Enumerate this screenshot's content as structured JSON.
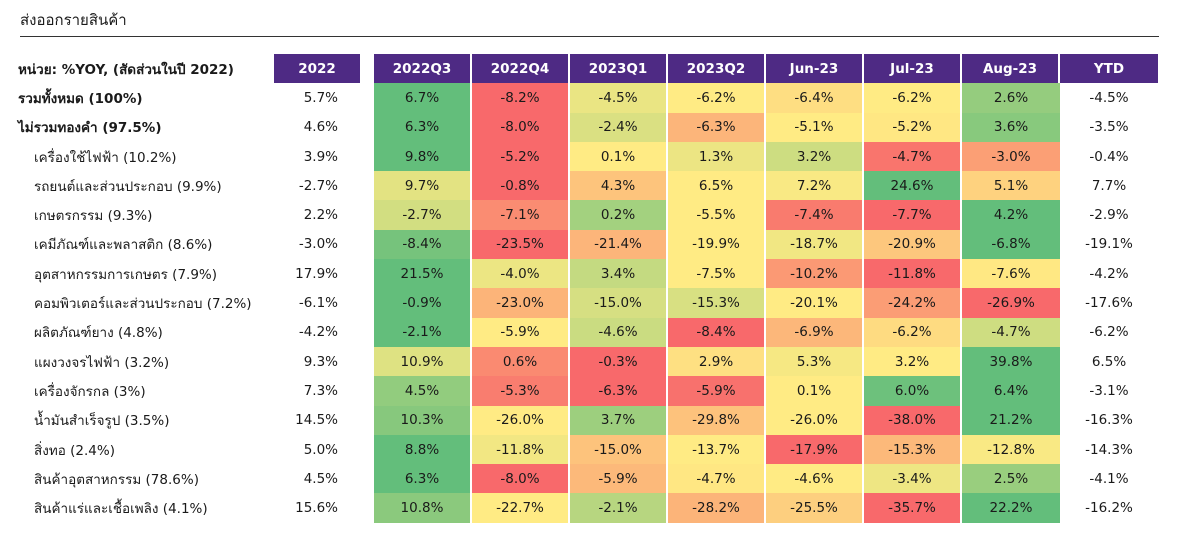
{
  "title": "ส่งออกรายสินค้า",
  "table": {
    "unit_label": "หน่วย: %YOY, (สัดส่วนในปี 2022)",
    "columns": [
      "2022",
      "2022Q3",
      "2022Q4",
      "2023Q1",
      "2023Q2",
      "Jun-23",
      "Jul-23",
      "Aug-23",
      "YTD"
    ],
    "rows": [
      {
        "label": "รวมทั้งหมด (100%)",
        "bold": true,
        "values": [
          "5.7%",
          "6.7%",
          "-8.2%",
          "-4.5%",
          "-6.2%",
          "-6.4%",
          "-6.2%",
          "2.6%",
          "-4.5%"
        ]
      },
      {
        "label": "ไม่รวมทองคำ (97.5%)",
        "bold": true,
        "values": [
          "4.6%",
          "6.3%",
          "-8.0%",
          "-2.4%",
          "-6.3%",
          "-5.1%",
          "-5.2%",
          "3.6%",
          "-3.5%"
        ]
      },
      {
        "label": "เครื่องใช้ไฟฟ้า (10.2%)",
        "bold": false,
        "values": [
          "3.9%",
          "9.8%",
          "-5.2%",
          "0.1%",
          "1.3%",
          "3.2%",
          "-4.7%",
          "-3.0%",
          "-0.4%"
        ]
      },
      {
        "label": "รถยนต์และส่วนประกอบ (9.9%)",
        "bold": false,
        "values": [
          "-2.7%",
          "9.7%",
          "-0.8%",
          "4.3%",
          "6.5%",
          "7.2%",
          "24.6%",
          "5.1%",
          "7.7%"
        ]
      },
      {
        "label": "เกษตรกรรม (9.3%)",
        "bold": false,
        "values": [
          "2.2%",
          "-2.7%",
          "-7.1%",
          "0.2%",
          "-5.5%",
          "-7.4%",
          "-7.7%",
          "4.2%",
          "-2.9%"
        ]
      },
      {
        "label": "เคมีภัณฑ์และพลาสติก (8.6%)",
        "bold": false,
        "values": [
          "-3.0%",
          "-8.4%",
          "-23.5%",
          "-21.4%",
          "-19.9%",
          "-18.7%",
          "-20.9%",
          "-6.8%",
          "-19.1%"
        ]
      },
      {
        "label": "อุตสาหกรรมการเกษตร (7.9%)",
        "bold": false,
        "values": [
          "17.9%",
          "21.5%",
          "-4.0%",
          "3.4%",
          "-7.5%",
          "-10.2%",
          "-11.8%",
          "-7.6%",
          "-4.2%"
        ]
      },
      {
        "label": "คอมพิวเตอร์และส่วนประกอบ (7.2%)",
        "bold": false,
        "values": [
          "-6.1%",
          "-0.9%",
          "-23.0%",
          "-15.0%",
          "-15.3%",
          "-20.1%",
          "-24.2%",
          "-26.9%",
          "-17.6%"
        ]
      },
      {
        "label": "ผลิตภัณฑ์ยาง (4.8%)",
        "bold": false,
        "values": [
          "-4.2%",
          "-2.1%",
          "-5.9%",
          "-4.6%",
          "-8.4%",
          "-6.9%",
          "-6.2%",
          "-4.7%",
          "-6.2%"
        ]
      },
      {
        "label": "แผงวงจรไฟฟ้า (3.2%)",
        "bold": false,
        "values": [
          "9.3%",
          "10.9%",
          "0.6%",
          "-0.3%",
          "2.9%",
          "5.3%",
          "3.2%",
          "39.8%",
          "6.5%"
        ]
      },
      {
        "label": "เครื่องจักรกล (3%)",
        "bold": false,
        "values": [
          "7.3%",
          "4.5%",
          "-5.3%",
          "-6.3%",
          "-5.9%",
          "0.1%",
          "6.0%",
          "6.4%",
          "-3.1%"
        ]
      },
      {
        "label": "น้ำมันสำเร็จรูป (3.5%)",
        "bold": false,
        "values": [
          "14.5%",
          "10.3%",
          "-26.0%",
          "3.7%",
          "-29.8%",
          "-26.0%",
          "-38.0%",
          "21.2%",
          "-16.3%"
        ]
      },
      {
        "label": "สิ่งทอ (2.4%)",
        "bold": false,
        "values": [
          "5.0%",
          "8.8%",
          "-11.8%",
          "-15.0%",
          "-13.7%",
          "-17.9%",
          "-15.3%",
          "-12.8%",
          "-14.3%"
        ]
      },
      {
        "label": "สินค้าอุตสาหกรรม (78.6%)",
        "bold": false,
        "values": [
          "4.5%",
          "6.3%",
          "-8.0%",
          "-5.9%",
          "-4.7%",
          "-4.6%",
          "-3.4%",
          "2.5%",
          "-4.1%"
        ]
      },
      {
        "label": "สินค้าแร่และเชื้อเพลิง (4.1%)",
        "bold": false,
        "values": [
          "15.6%",
          "10.8%",
          "-22.7%",
          "-2.1%",
          "-28.2%",
          "-25.5%",
          "-35.7%",
          "22.2%",
          "-16.2%"
        ]
      }
    ]
  },
  "colors": {
    "header_bg": "#4e2a84",
    "header_text": "#ffffff",
    "heat_low": "#f8696b",
    "heat_mid": "#ffeb84",
    "heat_high": "#63be7b"
  }
}
